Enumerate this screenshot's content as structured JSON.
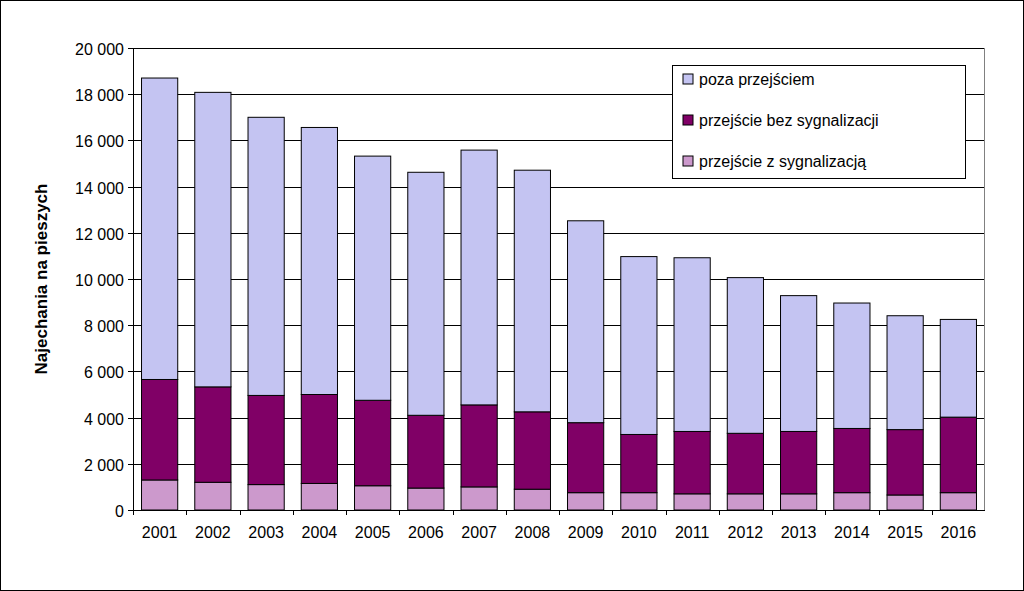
{
  "chart_data": {
    "type": "bar",
    "stacked": true,
    "y_label": "Najechania na pieszych",
    "categories": [
      "2001",
      "2002",
      "2003",
      "2004",
      "2005",
      "2006",
      "2007",
      "2008",
      "2009",
      "2010",
      "2011",
      "2012",
      "2013",
      "2014",
      "2015",
      "2016"
    ],
    "series": [
      {
        "name": "przejście z sygnalizacją",
        "color": "#cc99cc",
        "values": [
          1300,
          1200,
          1100,
          1150,
          1050,
          950,
          1000,
          900,
          750,
          750,
          700,
          700,
          700,
          750,
          650,
          750
        ]
      },
      {
        "name": "przejście bez sygnalizacji",
        "color": "#800066",
        "values": [
          4350,
          4130,
          3860,
          3850,
          3700,
          3150,
          3550,
          3350,
          3030,
          2520,
          2700,
          2620,
          2700,
          2780,
          2830,
          3270
        ]
      },
      {
        "name": "poza przejściem",
        "color": "#c4c4f2",
        "values": [
          13050,
          12750,
          12040,
          11560,
          10570,
          10520,
          11030,
          10460,
          8740,
          7700,
          7520,
          6740,
          5880,
          5430,
          4930,
          4230
        ]
      }
    ],
    "ylim": [
      0,
      20000
    ],
    "yticks": [
      0,
      {
        "value": 2000,
        "label": "2 000"
      },
      {
        "value": 4000,
        "label": "4 000"
      },
      {
        "value": 6000,
        "label": "6 000"
      },
      {
        "value": 8000,
        "label": "8 000"
      },
      {
        "value": 10000,
        "label": "10 000"
      },
      {
        "value": 12000,
        "label": "12 000"
      },
      {
        "value": 14000,
        "label": "14 000"
      },
      {
        "value": 16000,
        "label": "16 000"
      },
      {
        "value": 18000,
        "label": "18 000"
      },
      {
        "value": 20000,
        "label": "20 000"
      }
    ],
    "grid": true,
    "legend": "top-right"
  }
}
